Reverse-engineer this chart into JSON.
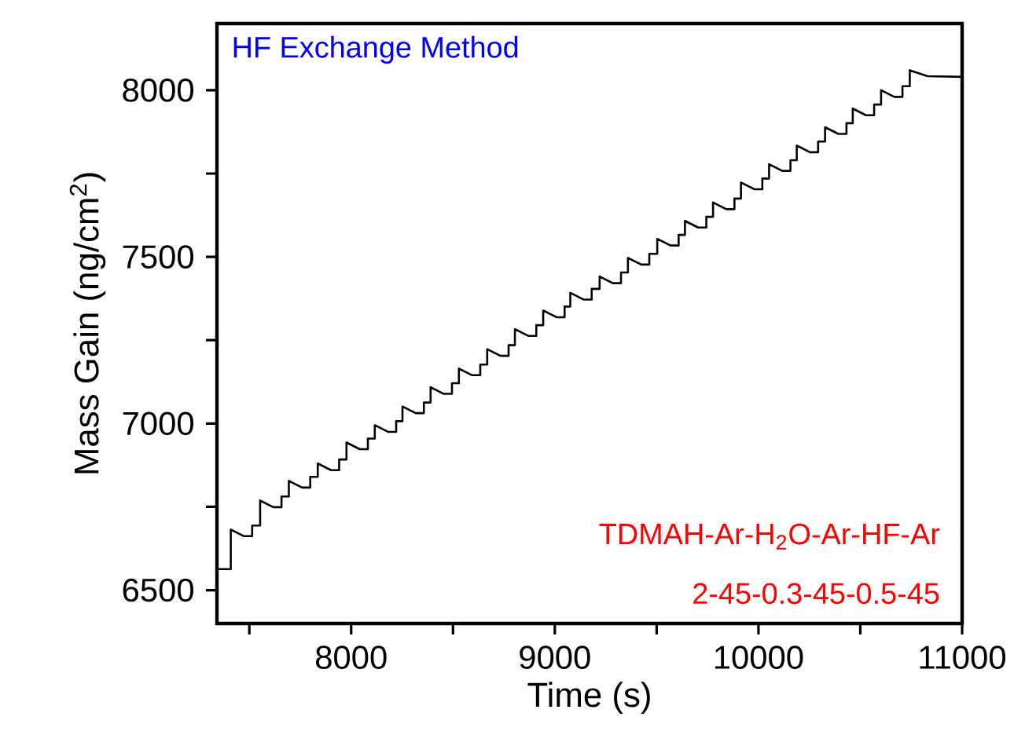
{
  "chart_data": {
    "type": "line",
    "xlabel": "Time (s)",
    "ylabel": "Mass Gain (ng/cm$^{2}$)",
    "annotations": [
      "HF Exchange Method",
      "TDMAH-Ar-H$_{2}$O-Ar-HF-Ar",
      "2-45-0.3-45-0.5-45"
    ],
    "xlim": [
      7341,
      11000
    ],
    "xticks": [
      {
        "value": 7500,
        "label": null
      },
      8000,
      {
        "value": 8500,
        "label": null
      },
      9000,
      {
        "value": 9500,
        "label": null
      },
      10000,
      {
        "value": 10500,
        "label": null
      },
      11000
    ],
    "ylim": [
      6400,
      8200
    ],
    "yticks": [
      6500,
      {
        "value": 6750,
        "label": null
      },
      7000,
      {
        "value": 7250,
        "label": null
      },
      7500,
      {
        "value": 7750,
        "label": null
      },
      8000
    ],
    "grid": false,
    "marker": "none",
    "line_style": "solid",
    "series": [
      {
        "color": "#000000",
        "x": [
          7341,
          7409,
          7409,
          7474,
          7514,
          7514,
          7553,
          7553,
          7618,
          7658,
          7658,
          7694,
          7694,
          7759,
          7799,
          7799,
          7836,
          7836,
          7901,
          7941,
          7941,
          7977,
          7977,
          8042,
          8082,
          8082,
          8116,
          8116,
          8181,
          8221,
          8221,
          8252,
          8252,
          8317,
          8357,
          8357,
          8390,
          8390,
          8455,
          8495,
          8495,
          8529,
          8529,
          8594,
          8634,
          8634,
          8668,
          8668,
          8733,
          8773,
          8773,
          8804,
          8804,
          8869,
          8909,
          8909,
          8943,
          8943,
          9008,
          9048,
          9048,
          9076,
          9076,
          9141,
          9181,
          9181,
          9220,
          9220,
          9285,
          9325,
          9325,
          9359,
          9359,
          9424,
          9464,
          9464,
          9503,
          9503,
          9568,
          9608,
          9608,
          9639,
          9639,
          9704,
          9744,
          9744,
          9777,
          9777,
          9842,
          9882,
          9882,
          9914,
          9914,
          9979,
          10019,
          10019,
          10052,
          10052,
          10117,
          10157,
          10157,
          10188,
          10188,
          10253,
          10293,
          10293,
          10327,
          10327,
          10392,
          10432,
          10432,
          10463,
          10463,
          10528,
          10568,
          10568,
          10602,
          10602,
          10667,
          10707,
          10707,
          10743,
          10743,
          10830,
          11000
        ],
        "values": [
          6563,
          6563,
          6682,
          6662,
          6662,
          6694,
          6694,
          6769,
          6749,
          6749,
          6781,
          6781,
          6828,
          6808,
          6808,
          6840,
          6840,
          6880,
          6860,
          6860,
          6892,
          6892,
          6943,
          6923,
          6923,
          6955,
          6955,
          6995,
          6975,
          6975,
          7007,
          7007,
          7051,
          7031,
          7031,
          7063,
          7063,
          7109,
          7089,
          7089,
          7121,
          7121,
          7165,
          7145,
          7145,
          7177,
          7177,
          7223,
          7203,
          7203,
          7235,
          7235,
          7283,
          7263,
          7263,
          7295,
          7295,
          7339,
          7319,
          7319,
          7351,
          7351,
          7392,
          7372,
          7372,
          7404,
          7404,
          7441,
          7421,
          7421,
          7453,
          7453,
          7497,
          7477,
          7477,
          7509,
          7509,
          7554,
          7534,
          7534,
          7566,
          7566,
          7608,
          7588,
          7588,
          7620,
          7620,
          7663,
          7643,
          7643,
          7675,
          7675,
          7723,
          7703,
          7703,
          7735,
          7735,
          7778,
          7758,
          7758,
          7790,
          7790,
          7834,
          7814,
          7814,
          7846,
          7846,
          7889,
          7869,
          7869,
          7901,
          7901,
          7945,
          7925,
          7925,
          7957,
          7957,
          8000,
          7980,
          7980,
          8012,
          8012,
          8060,
          8042,
          8040
        ]
      }
    ]
  }
}
